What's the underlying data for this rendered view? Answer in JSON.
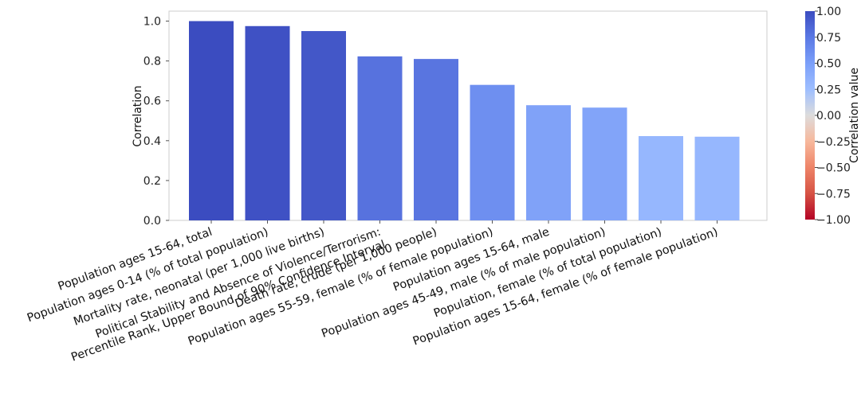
{
  "chart_data": {
    "type": "bar",
    "categories": [
      "Population ages 15-64, total",
      "Population ages 0-14 (% of total population)",
      "Mortality rate, neonatal (per 1,000 live births)",
      "Political Stability and Absence of Violence/Terrorism:\nPercentile Rank, Upper Bound of 90% Confidence Interval",
      "Death rate, crude (per 1,000 people)",
      "Population ages 55-59, female (% of female population)",
      "Population ages 15-64, male",
      "Population ages 45-49, male (% of male population)",
      "Population, female (% of total population)",
      "Population ages 15-64, female (% of female population)"
    ],
    "values": [
      1.0,
      0.975,
      0.95,
      0.823,
      0.81,
      0.68,
      0.578,
      0.566,
      0.423,
      0.42
    ],
    "xlabel": "",
    "ylabel": "Correlation",
    "ylim": [
      0,
      1.05
    ],
    "yticks": [
      "0.0",
      "0.2",
      "0.4",
      "0.6",
      "0.8",
      "1.0"
    ],
    "grid": false,
    "colormap": "coolwarm",
    "colorbar": {
      "label": "Correlation value",
      "range": [
        -1,
        1
      ],
      "ticks": [
        "1.00",
        "0.75",
        "0.50",
        "0.25",
        "0.00",
        "−0.25",
        "−0.50",
        "−0.75",
        "−1.00"
      ]
    }
  }
}
